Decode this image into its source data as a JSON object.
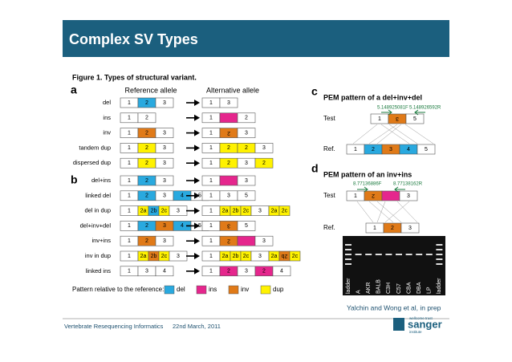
{
  "header": {
    "title": "Complex SV Types"
  },
  "figure": {
    "caption": "Figure 1. Types of structural variant.",
    "panel_a": {
      "letter": "a",
      "ref_header": "Reference allele",
      "alt_header": "Alternative allele",
      "rows": [
        {
          "label": "del",
          "ref": [
            {
              "text": "1",
              "color": "white"
            },
            {
              "text": "2",
              "color": "blue"
            },
            {
              "text": "3",
              "color": "white"
            }
          ],
          "alt": [
            {
              "text": "1",
              "color": "white"
            },
            {
              "text": "3",
              "color": "white"
            }
          ]
        },
        {
          "label": "ins",
          "ref": [
            {
              "text": "1",
              "color": "white"
            },
            {
              "text": "2",
              "color": "white"
            }
          ],
          "alt": [
            {
              "text": "1",
              "color": "white"
            },
            {
              "color": "pink"
            },
            {
              "text": "2",
              "color": "white"
            }
          ]
        },
        {
          "label": "inv",
          "ref": [
            {
              "text": "1",
              "color": "white"
            },
            {
              "text": "2",
              "color": "orange"
            },
            {
              "text": "3",
              "color": "white"
            }
          ],
          "alt": [
            {
              "text": "1",
              "color": "white"
            },
            {
              "text": "2",
              "color": "orange",
              "inverted": true
            },
            {
              "text": "3",
              "color": "white"
            }
          ]
        },
        {
          "label": "tandem dup",
          "ref": [
            {
              "text": "1",
              "color": "white"
            },
            {
              "text": "2",
              "color": "yellow"
            },
            {
              "text": "3",
              "color": "white"
            }
          ],
          "alt": [
            {
              "text": "1",
              "color": "white"
            },
            {
              "text": "2",
              "color": "yellow"
            },
            {
              "text": "2",
              "color": "yellow"
            },
            {
              "text": "3",
              "color": "white"
            }
          ]
        },
        {
          "label": "dispersed dup",
          "ref": [
            {
              "text": "1",
              "color": "white"
            },
            {
              "text": "2",
              "color": "yellow"
            },
            {
              "text": "3",
              "color": "white"
            }
          ],
          "alt": [
            {
              "text": "1",
              "color": "white"
            },
            {
              "text": "2",
              "color": "yellow"
            },
            {
              "text": "3",
              "color": "white"
            },
            {
              "text": "2",
              "color": "yellow"
            }
          ]
        }
      ]
    },
    "panel_b": {
      "letter": "b",
      "rows": [
        {
          "label": "del+ins",
          "ref": [
            {
              "text": "1",
              "color": "white"
            },
            {
              "text": "2",
              "color": "blue"
            },
            {
              "text": "3",
              "color": "white"
            }
          ],
          "alt": [
            {
              "text": "1",
              "color": "white"
            },
            {
              "color": "pink"
            },
            {
              "text": "3",
              "color": "white"
            }
          ]
        },
        {
          "label": "linked del",
          "ref": [
            {
              "text": "1",
              "color": "white"
            },
            {
              "text": "2",
              "color": "blue"
            },
            {
              "text": "3",
              "color": "white"
            },
            {
              "text": "4",
              "color": "blue"
            },
            {
              "text": "5",
              "color": "white"
            }
          ],
          "alt": [
            {
              "text": "1",
              "color": "white"
            },
            {
              "text": "3",
              "color": "white"
            },
            {
              "text": "5",
              "color": "white"
            }
          ]
        },
        {
          "label": "del in dup",
          "ref": [
            {
              "text": "1",
              "color": "white"
            },
            {
              "text": "2a",
              "color": "yellow"
            },
            {
              "text": "2b",
              "color": "blue"
            },
            {
              "text": "2c",
              "color": "yellow"
            },
            {
              "text": "3",
              "color": "white"
            }
          ],
          "alt": [
            {
              "text": "1",
              "color": "white"
            },
            {
              "text": "2a",
              "color": "yellow"
            },
            {
              "text": "2b",
              "color": "yellow"
            },
            {
              "text": "2c",
              "color": "yellow"
            },
            {
              "text": "3",
              "color": "white"
            },
            {
              "text": "2a",
              "color": "yellow"
            },
            {
              "text": "2c",
              "color": "yellow"
            }
          ]
        },
        {
          "label": "del+inv+del",
          "ref": [
            {
              "text": "1",
              "color": "white"
            },
            {
              "text": "2",
              "color": "blue"
            },
            {
              "text": "3",
              "color": "orange"
            },
            {
              "text": "4",
              "color": "blue"
            },
            {
              "text": "5",
              "color": "white"
            }
          ],
          "alt": [
            {
              "text": "1",
              "color": "white"
            },
            {
              "text": "3",
              "color": "orange",
              "inverted": true
            },
            {
              "text": "5",
              "color": "white"
            }
          ]
        },
        {
          "label": "inv+ins",
          "ref": [
            {
              "text": "1",
              "color": "white"
            },
            {
              "text": "2",
              "color": "orange"
            },
            {
              "text": "3",
              "color": "white"
            }
          ],
          "alt": [
            {
              "text": "1",
              "color": "white"
            },
            {
              "text": "2",
              "color": "orange",
              "inverted": true
            },
            {
              "color": "pink"
            },
            {
              "text": "3",
              "color": "white"
            }
          ]
        },
        {
          "label": "inv in dup",
          "ref": [
            {
              "text": "1",
              "color": "white"
            },
            {
              "text": "2a",
              "color": "yellow"
            },
            {
              "text": "2b",
              "color": "orange"
            },
            {
              "text": "2c",
              "color": "yellow"
            },
            {
              "text": "3",
              "color": "white"
            }
          ],
          "alt": [
            {
              "text": "1",
              "color": "white"
            },
            {
              "text": "2a",
              "color": "yellow"
            },
            {
              "text": "2b",
              "color": "yellow"
            },
            {
              "text": "2c",
              "color": "yellow"
            },
            {
              "text": "3",
              "color": "white"
            },
            {
              "text": "2a",
              "color": "yellow"
            },
            {
              "text": "2b",
              "color": "orange",
              "inverted": true
            },
            {
              "text": "2c",
              "color": "yellow"
            }
          ]
        },
        {
          "label": "linked ins",
          "ref": [
            {
              "text": "1",
              "color": "white"
            },
            {
              "text": "3",
              "color": "white"
            },
            {
              "text": "4",
              "color": "white"
            }
          ],
          "alt": [
            {
              "text": "1",
              "color": "white"
            },
            {
              "text": "2",
              "color": "pink"
            },
            {
              "text": "3",
              "color": "white"
            },
            {
              "text": "2",
              "color": "pink"
            },
            {
              "text": "4",
              "color": "white"
            }
          ]
        }
      ]
    },
    "legend": {
      "title": "Pattern relative to the reference:",
      "items": [
        {
          "label": "del",
          "color": "blue"
        },
        {
          "label": "ins",
          "color": "pink"
        },
        {
          "label": "inv",
          "color": "orange"
        },
        {
          "label": "dup",
          "color": "yellow"
        }
      ]
    },
    "panel_c": {
      "letter": "c",
      "title": "PEM pattern of a del+inv+del",
      "read_f": "5.148925081F",
      "read_r": "5.148926592R",
      "test_label": "Test",
      "ref_label": "Ref.",
      "test": [
        {
          "text": "1",
          "color": "white"
        },
        {
          "text": "3",
          "color": "orange",
          "inverted": true
        },
        {
          "text": "5",
          "color": "white"
        }
      ],
      "ref": [
        {
          "text": "1",
          "color": "white"
        },
        {
          "text": "2",
          "color": "blue"
        },
        {
          "text": "3",
          "color": "orange"
        },
        {
          "text": "4",
          "color": "blue"
        },
        {
          "text": "5",
          "color": "white"
        }
      ]
    },
    "panel_d": {
      "letter": "d",
      "title": "PEM pattern of an inv+ins",
      "read_f": "8.77136886F",
      "read_r": "8.77138162R",
      "test_label": "Test",
      "ref_label": "Ref.",
      "test": [
        {
          "text": "1",
          "color": "white"
        },
        {
          "text": "2",
          "color": "orange",
          "inverted": true
        },
        {
          "color": "pink"
        },
        {
          "text": "3",
          "color": "white"
        }
      ],
      "ref": [
        {
          "text": "1",
          "color": "white"
        },
        {
          "text": "2",
          "color": "orange"
        },
        {
          "text": "3",
          "color": "white"
        }
      ],
      "gel_lanes": [
        "ladder",
        "A",
        "AKR",
        "BALB",
        "C3H",
        "C57",
        "CBA",
        "DBA",
        "LP",
        "ladder"
      ]
    },
    "credit": "Yalchin and Wong et al, in prep"
  },
  "footer": {
    "left": "Vertebrate Resequencing Informatics",
    "date": "22nd March, 2011",
    "logo_top": "wellcome trust",
    "logo": "sanger",
    "logo_sub": "institute"
  }
}
